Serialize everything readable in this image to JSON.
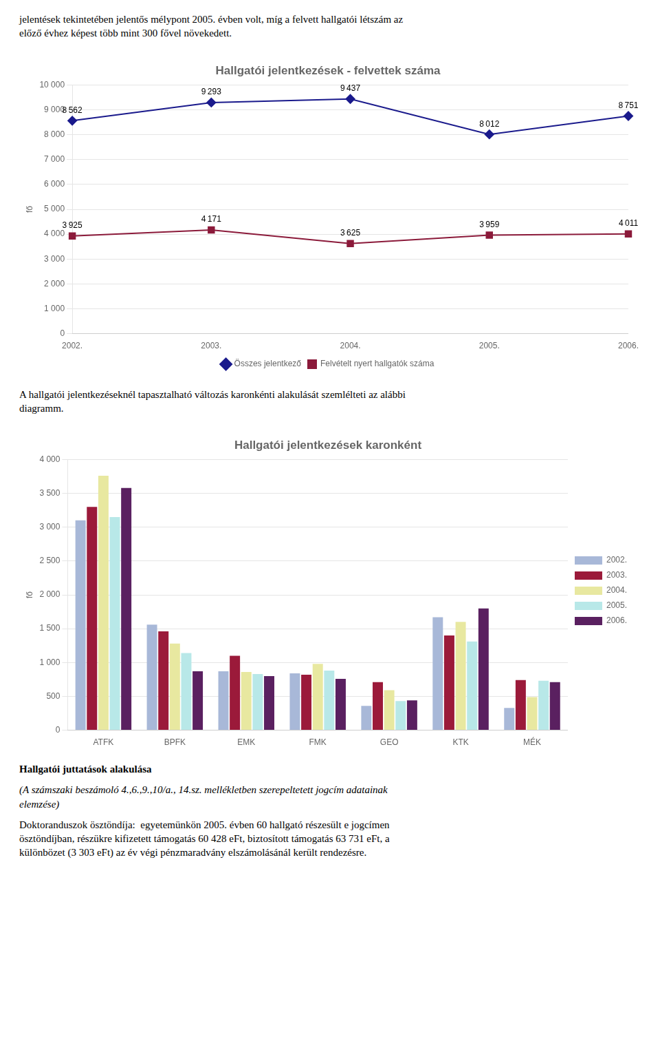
{
  "annotations": [
    "jelentések tekintetében jelentős mélypont 2005. évben volt, míg a felvett hallgatói létszám az\nelőző évhez képest több mint 300 fővel növekedett.",
    "A hallgatói jelentkezéseknél tapasztalható változás karonkénti alakulását szemlélteti az alábbi\ndiagramm.",
    "Hallgatói juttatások alakulása",
    "(A számszaki beszámoló 4.,6.,9.,10/a., 14.sz. mellékletben szerepeltetett jogcím adatainak\nelemzése)",
    "Doktoranduszok ösztöndíja:  egyetemünkön 2005. évben 60 hallgató részesült e jogcímen\nösztöndíjban, részükre kifizetett támogatás 60 428 eFt, biztosított támogatás 63 731 eFt, a\nkülönbözet (3 303 eFt) az év végi pénzmaradvány elszámolásánál került rendezésre."
  ],
  "chart_data": [
    {
      "type": "line",
      "title": "Hallgatói jelentkezések - felvettek száma",
      "categories": [
        "2002.",
        "2003.",
        "2004.",
        "2005.",
        "2006."
      ],
      "series": [
        {
          "name": "Összes jelentkező",
          "color": "#1a1a8c",
          "marker": "diamond",
          "values": [
            8562,
            9293,
            9437,
            8012,
            8751
          ],
          "value_labels": [
            "8 562",
            "9 293",
            "9 437",
            "8 012",
            "8 751"
          ]
        },
        {
          "name": "Felvételt nyert hallgatók száma",
          "color": "#8b1a3a",
          "marker": "square",
          "values": [
            3925,
            4171,
            3625,
            3959,
            4011
          ],
          "value_labels": [
            "3 925",
            "4 171",
            "3 625",
            "3 959",
            "4 011"
          ]
        }
      ],
      "ylabel": "fő",
      "ylim": [
        0,
        10000
      ],
      "yticks": [
        0,
        {
          "value": 1000,
          "label": "1 000"
        },
        {
          "value": 2000,
          "label": "2 000"
        },
        {
          "value": 3000,
          "label": "3 000"
        },
        {
          "value": 4000,
          "label": "4 000"
        },
        {
          "value": 5000,
          "label": "5 000"
        },
        {
          "value": 6000,
          "label": "6 000"
        },
        {
          "value": 7000,
          "label": "7 000"
        },
        {
          "value": 8000,
          "label": "8 000"
        },
        {
          "value": 9000,
          "label": "9 000"
        },
        {
          "value": 10000,
          "label": "10 000"
        }
      ],
      "grid": true,
      "legend": "bottom",
      "data_labels": true
    },
    {
      "type": "bar",
      "title": "Hallgatói jelentkezések karonként",
      "categories": [
        "ATFK",
        "BPFK",
        "EMK",
        "FMK",
        "GEO",
        "KTK",
        "MÉK"
      ],
      "series": [
        {
          "name": "2002.",
          "color": "#a8b8d8",
          "values": [
            3100,
            1560,
            870,
            840,
            360,
            1670,
            330
          ]
        },
        {
          "name": "2003.",
          "color": "#9b1a3a",
          "values": [
            3300,
            1460,
            1100,
            820,
            710,
            1400,
            740
          ]
        },
        {
          "name": "2004.",
          "color": "#e8e8a0",
          "values": [
            3760,
            1280,
            860,
            980,
            590,
            1600,
            490
          ]
        },
        {
          "name": "2005.",
          "color": "#b8e8e8",
          "values": [
            3150,
            1140,
            830,
            880,
            430,
            1310,
            730
          ]
        },
        {
          "name": "2006.",
          "color": "#5a2060",
          "values": [
            3580,
            870,
            800,
            760,
            440,
            1800,
            710
          ]
        }
      ],
      "ylabel": "fő",
      "ylim": [
        0,
        4000
      ],
      "yticks": [
        0,
        500,
        {
          "value": 1000,
          "label": "1 000"
        },
        {
          "value": 1500,
          "label": "1 500"
        },
        {
          "value": 2000,
          "label": "2 000"
        },
        {
          "value": 2500,
          "label": "2 500"
        },
        {
          "value": 3000,
          "label": "3 000"
        },
        {
          "value": 3500,
          "label": "3 500"
        },
        {
          "value": 4000,
          "label": "4 000"
        }
      ],
      "grid": true,
      "legend": "right"
    }
  ]
}
